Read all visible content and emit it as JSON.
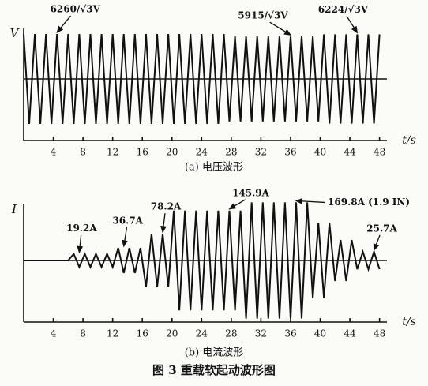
{
  "figure_title": "图 3  重载软起动波形图",
  "chart_data": [
    {
      "type": "line",
      "caption": "(a) 电压波形",
      "y_label": "V",
      "x_label": "t/s",
      "color": "#111111",
      "xlim": [
        0,
        49
      ],
      "ylim": [
        -4950,
        4950
      ],
      "xticks": [
        4,
        8,
        12,
        16,
        20,
        24,
        28,
        32,
        36,
        40,
        44,
        48
      ],
      "x": [
        0,
        0.75,
        1.5,
        2.25,
        3,
        3.75,
        4.5,
        5.25,
        6,
        6.75,
        7.5,
        8.25,
        9,
        9.75,
        10.5,
        11.25,
        12,
        12.75,
        13.5,
        14.25,
        15,
        15.75,
        16.5,
        17.25,
        18,
        18.75,
        19.5,
        20.25,
        21,
        21.75,
        22.5,
        23.25,
        24,
        24.75,
        25.5,
        26.25,
        27,
        27.75,
        28.5,
        29.25,
        30,
        30.75,
        31.5,
        32.25,
        33,
        33.75,
        34.5,
        35.25,
        36,
        36.75,
        37.5,
        38.25,
        39,
        39.75,
        40.5,
        41.25,
        42,
        42.75,
        43.5,
        44.25,
        45,
        45.75,
        46.5,
        47.25,
        48
      ],
      "values": [
        3614,
        -3614,
        3614,
        -3614,
        3614,
        -3614,
        3614,
        -3614,
        3614,
        -3614,
        3614,
        -3614,
        3614,
        -3614,
        3614,
        -3614,
        3614,
        -3614,
        3614,
        -3614,
        3614,
        -3614,
        3614,
        -3614,
        3614,
        -3614,
        3614,
        -3614,
        3614,
        -3614,
        3614,
        -3614,
        3614,
        -3614,
        3614,
        -3614,
        3614,
        -3415,
        3415,
        -3415,
        3415,
        -3415,
        3415,
        -3415,
        3415,
        -3415,
        3415,
        -3415,
        3415,
        -3415,
        3415,
        -3415,
        3415,
        -3415,
        3593,
        -3593,
        3593,
        -3593,
        3593,
        -3593,
        3593,
        -3593,
        3593,
        -3593,
        3593
      ],
      "annotations": [
        {
          "text": "6260/√3V",
          "x": 4.5,
          "y": 3614
        },
        {
          "text": "5915/√3V",
          "x": 36,
          "y": 3415
        },
        {
          "text": "6224/√3V",
          "x": 45,
          "y": 3593
        }
      ]
    },
    {
      "type": "line",
      "caption": "(b) 电流波形",
      "y_label": "I",
      "x_label": "t/s",
      "color": "#111111",
      "xlim": [
        0,
        49
      ],
      "ylim": [
        -180,
        180
      ],
      "xticks": [
        4,
        8,
        12,
        16,
        20,
        24,
        28,
        32,
        36,
        40,
        44,
        48
      ],
      "x": [
        0,
        6,
        6.75,
        7.5,
        8.25,
        9,
        9.75,
        10.5,
        11.25,
        12,
        12.75,
        13.5,
        14.25,
        15,
        15.75,
        16.5,
        17.25,
        18,
        18.75,
        19.5,
        20.25,
        21,
        21.75,
        22.5,
        23.25,
        24,
        24.75,
        25.5,
        26.25,
        27,
        27.75,
        28.5,
        29.25,
        30,
        30.75,
        31.5,
        32.25,
        33,
        33.75,
        34.5,
        35.25,
        36,
        36.75,
        37.5,
        38.25,
        39,
        39.75,
        40.5,
        41.25,
        42,
        42.75,
        43.5,
        44.25,
        45,
        45.75,
        46.5,
        47.25,
        48
      ],
      "values": [
        0,
        0,
        19.2,
        -19.2,
        19.2,
        -19.2,
        19.2,
        -19.2,
        19.2,
        -19.2,
        36.7,
        -36.7,
        36.7,
        -36.7,
        36.7,
        -78.2,
        78.2,
        -78.2,
        78.2,
        -78.2,
        145.9,
        -145.9,
        145.9,
        -145.9,
        145.9,
        -145.9,
        145.9,
        -145.9,
        145.9,
        -145.9,
        145.9,
        -145.9,
        145.9,
        -169.8,
        169.8,
        -169.8,
        169.8,
        -169.8,
        169.8,
        -169.8,
        169.8,
        -169.8,
        169.8,
        -169.8,
        169.8,
        -110,
        110,
        -110,
        110,
        -60,
        60,
        -60,
        60,
        -25.7,
        25.7,
        -25.7,
        25.7,
        -25.7
      ],
      "annotations": [
        {
          "text": "19.2A",
          "x": 7.5,
          "y": 19.2
        },
        {
          "text": "36.7A",
          "x": 13.5,
          "y": 36.7
        },
        {
          "text": "78.2A",
          "x": 18.75,
          "y": 78.2
        },
        {
          "text": "145.9A",
          "x": 27.75,
          "y": 145.9
        },
        {
          "text": "169.8A (1.9 IN)",
          "x": 36.75,
          "y": 169.8
        },
        {
          "text": "25.7A",
          "x": 47.25,
          "y": 25.7
        }
      ]
    }
  ]
}
